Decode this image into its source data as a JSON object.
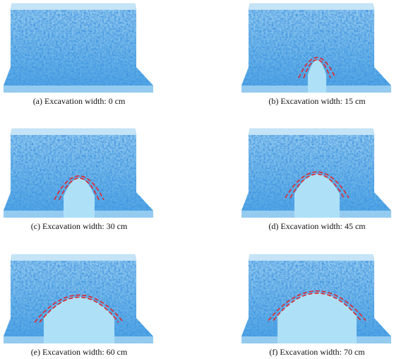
{
  "panels": [
    {
      "caption": "(a) Excavation width: 0 cm"
    },
    {
      "caption": "(b) Excavation width: 15 cm"
    },
    {
      "caption": "(c) Excavation width: 30 cm"
    },
    {
      "caption": "(d) Excavation width: 45 cm"
    },
    {
      "caption": "(e) Excavation width: 60 cm"
    },
    {
      "caption": "(f) Excavation width: 70 cm"
    }
  ]
}
